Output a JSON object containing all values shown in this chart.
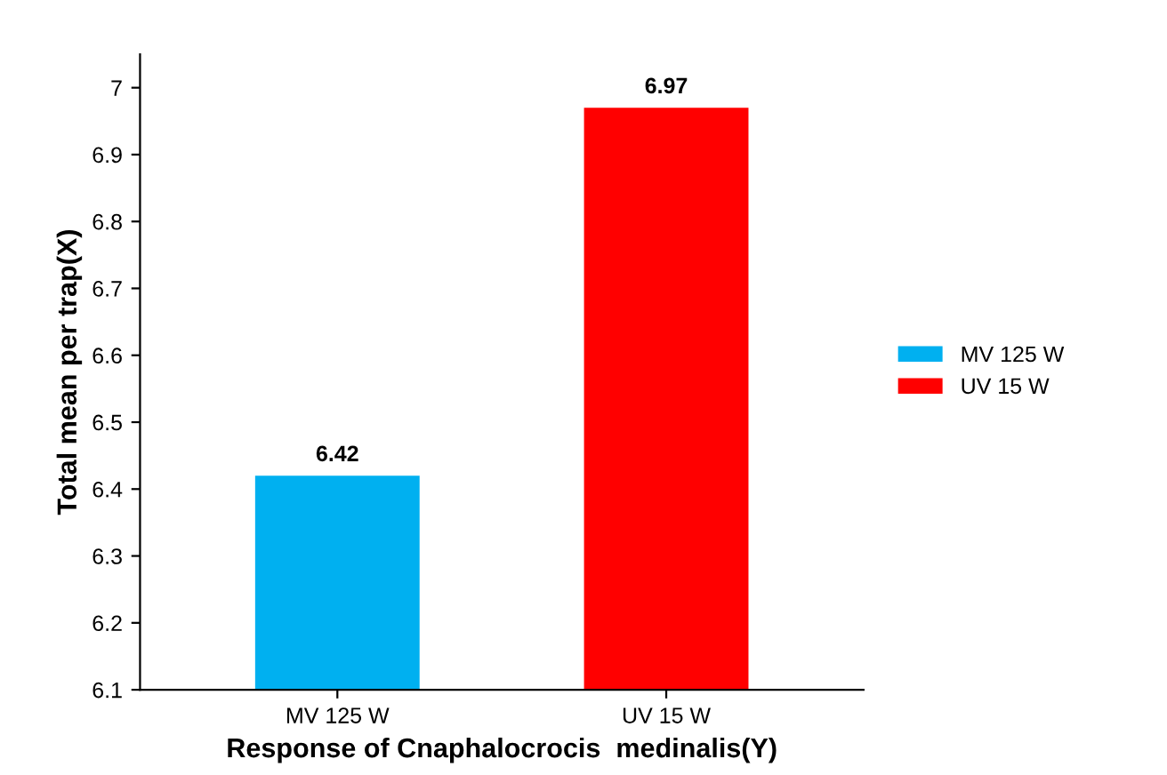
{
  "chart_data": {
    "type": "bar",
    "xlabel": "Response of Cnaphalocrocis  medinalis(Y)",
    "ylabel": "Total mean per trap(X)",
    "categories": [
      "MV 125 W",
      "UV 15 W"
    ],
    "series": [
      {
        "name": "MV 125 W",
        "color": "#00b0f0",
        "values": [
          6.42,
          null
        ]
      },
      {
        "name": "UV 15 W",
        "color": "#ff0000",
        "values": [
          null,
          6.97
        ]
      }
    ],
    "ylim": [
      6.1,
      7.05
    ],
    "yticks": [
      6.1,
      6.2,
      6.3,
      6.4,
      6.5,
      6.6,
      6.7,
      6.8,
      6.9,
      7
    ],
    "data_labels": true,
    "legend": "right",
    "grid": false
  }
}
